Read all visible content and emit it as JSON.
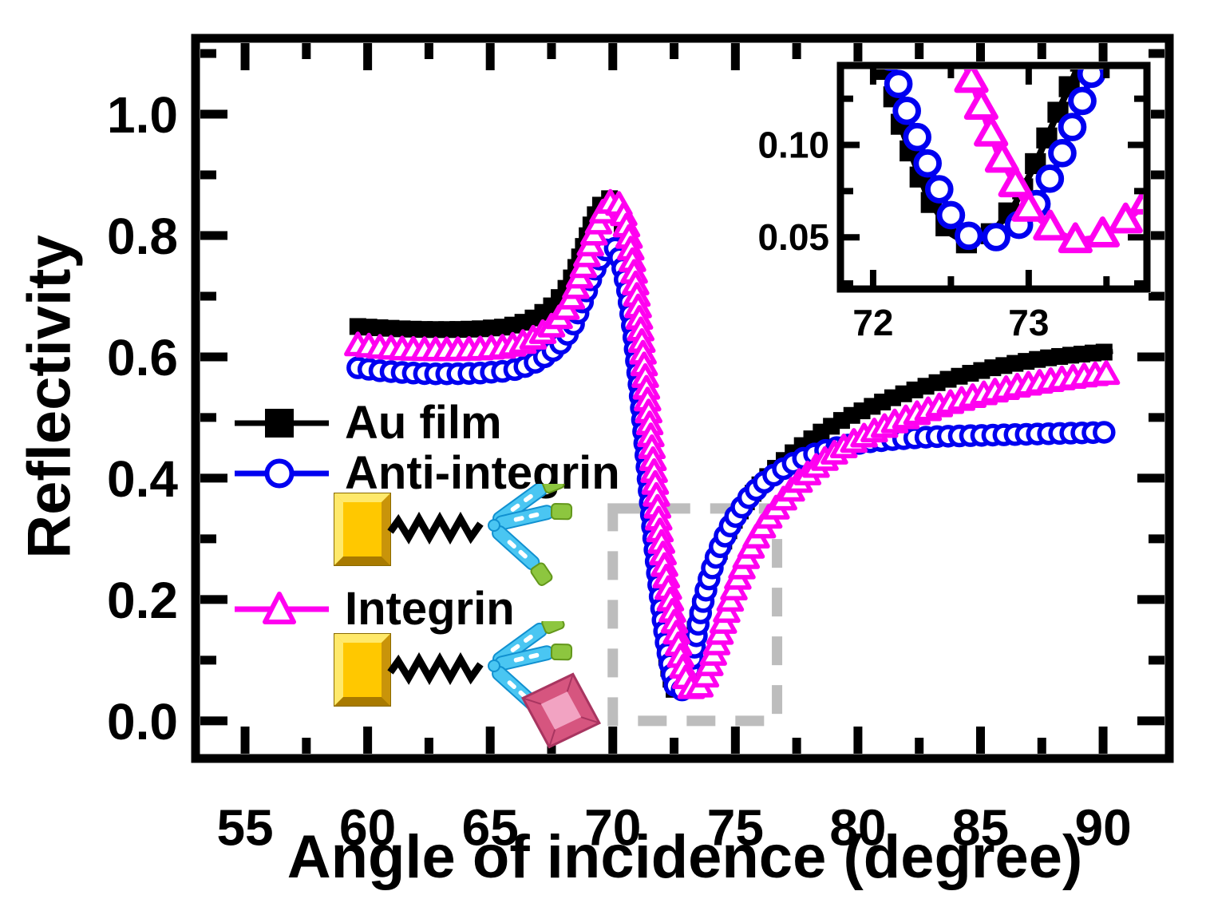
{
  "chart_data": {
    "type": "line",
    "title": "",
    "xlabel": "Angle of incidence (degree)",
    "ylabel": "Reflectivity",
    "xlim": [
      52.98,
      92.7
    ],
    "ylim": [
      -0.062,
      1.125
    ],
    "x_major_ticks": [
      55,
      60,
      65,
      70,
      75,
      80,
      85,
      90
    ],
    "x_tick_labels": [
      "55",
      "60",
      "65",
      "70",
      "75",
      "80",
      "85",
      "90"
    ],
    "x_minor_ticks": [
      57.5,
      62.5,
      67.5,
      72.5,
      77.5,
      82.5,
      87.5,
      92.5
    ],
    "y_major_ticks": [
      0.0,
      0.2,
      0.4,
      0.6,
      0.8,
      1.0
    ],
    "y_tick_labels": [
      "0.0",
      "0.2",
      "0.4",
      "0.6",
      "0.8",
      "1.0"
    ],
    "y_minor_ticks": [
      0.1,
      0.3,
      0.5,
      0.7,
      0.9,
      1.1
    ],
    "grid": false,
    "series": [
      {
        "name": "Au film",
        "color": "#000000",
        "marker": "square",
        "points": [
          [
            59.6,
            0.65
          ],
          [
            60.5,
            0.648
          ],
          [
            61.5,
            0.646
          ],
          [
            62.5,
            0.645
          ],
          [
            63.5,
            0.645
          ],
          [
            64.5,
            0.646
          ],
          [
            65.5,
            0.649
          ],
          [
            66.0,
            0.653
          ],
          [
            66.5,
            0.659
          ],
          [
            67.0,
            0.669
          ],
          [
            67.5,
            0.684
          ],
          [
            68.0,
            0.706
          ],
          [
            68.4,
            0.737
          ],
          [
            68.8,
            0.782
          ],
          [
            69.2,
            0.828
          ],
          [
            69.5,
            0.85
          ],
          [
            69.8,
            0.862
          ],
          [
            70.0,
            0.858
          ],
          [
            70.2,
            0.841
          ],
          [
            70.45,
            0.801
          ],
          [
            70.7,
            0.737
          ],
          [
            70.95,
            0.648
          ],
          [
            71.2,
            0.538
          ],
          [
            71.45,
            0.418
          ],
          [
            71.7,
            0.298
          ],
          [
            71.9,
            0.207
          ],
          [
            72.05,
            0.152
          ],
          [
            72.2,
            0.105
          ],
          [
            72.35,
            0.072
          ],
          [
            72.5,
            0.052
          ],
          [
            72.6,
            0.047
          ],
          [
            72.75,
            0.051
          ],
          [
            72.9,
            0.066
          ],
          [
            73.05,
            0.091
          ],
          [
            73.2,
            0.12
          ],
          [
            73.4,
            0.158
          ],
          [
            73.6,
            0.192
          ],
          [
            73.9,
            0.233
          ],
          [
            74.2,
            0.266
          ],
          [
            74.6,
            0.303
          ],
          [
            75.0,
            0.334
          ],
          [
            75.5,
            0.364
          ],
          [
            76.0,
            0.389
          ],
          [
            76.7,
            0.419
          ],
          [
            77.5,
            0.447
          ],
          [
            78.5,
            0.476
          ],
          [
            79.5,
            0.499
          ],
          [
            80.5,
            0.517
          ],
          [
            81.5,
            0.534
          ],
          [
            82.5,
            0.548
          ],
          [
            83.5,
            0.561
          ],
          [
            84.5,
            0.572
          ],
          [
            85.5,
            0.582
          ],
          [
            86.5,
            0.59
          ],
          [
            87.5,
            0.597
          ],
          [
            88.5,
            0.602
          ],
          [
            89.5,
            0.606
          ],
          [
            90.4,
            0.609
          ]
        ]
      },
      {
        "name": "Anti-integrin",
        "color": "#0000F0",
        "marker": "circle-open",
        "points": [
          [
            59.6,
            0.582
          ],
          [
            60.5,
            0.577
          ],
          [
            61.5,
            0.574
          ],
          [
            62.5,
            0.572
          ],
          [
            63.5,
            0.572
          ],
          [
            64.5,
            0.573
          ],
          [
            65.5,
            0.576
          ],
          [
            66.0,
            0.579
          ],
          [
            66.5,
            0.585
          ],
          [
            67.0,
            0.594
          ],
          [
            67.5,
            0.608
          ],
          [
            68.0,
            0.627
          ],
          [
            68.4,
            0.654
          ],
          [
            68.8,
            0.694
          ],
          [
            69.2,
            0.738
          ],
          [
            69.6,
            0.771
          ],
          [
            69.9,
            0.784
          ],
          [
            70.1,
            0.779
          ],
          [
            70.35,
            0.757
          ],
          [
            70.6,
            0.709
          ],
          [
            70.85,
            0.636
          ],
          [
            71.1,
            0.543
          ],
          [
            71.35,
            0.438
          ],
          [
            71.6,
            0.328
          ],
          [
            71.85,
            0.232
          ],
          [
            72.05,
            0.166
          ],
          [
            72.2,
            0.122
          ],
          [
            72.35,
            0.09
          ],
          [
            72.5,
            0.062
          ],
          [
            72.6,
            0.051
          ],
          [
            72.75,
            0.049
          ],
          [
            72.9,
            0.053
          ],
          [
            73.05,
            0.068
          ],
          [
            73.2,
            0.092
          ],
          [
            73.35,
            0.125
          ],
          [
            73.5,
            0.163
          ],
          [
            73.75,
            0.208
          ],
          [
            74.0,
            0.245
          ],
          [
            74.3,
            0.28
          ],
          [
            74.7,
            0.315
          ],
          [
            75.1,
            0.343
          ],
          [
            75.6,
            0.371
          ],
          [
            76.1,
            0.391
          ],
          [
            76.8,
            0.412
          ],
          [
            77.6,
            0.43
          ],
          [
            78.5,
            0.444
          ],
          [
            79.5,
            0.454
          ],
          [
            80.5,
            0.46
          ],
          [
            81.5,
            0.464
          ],
          [
            82.5,
            0.467
          ],
          [
            83.5,
            0.469
          ],
          [
            84.5,
            0.47
          ],
          [
            85.5,
            0.471
          ],
          [
            86.5,
            0.472
          ],
          [
            87.5,
            0.473
          ],
          [
            88.5,
            0.474
          ],
          [
            89.5,
            0.475
          ],
          [
            90.4,
            0.476
          ]
        ]
      },
      {
        "name": "Integrin",
        "color": "#FF00F0",
        "marker": "triangle-open",
        "points": [
          [
            59.6,
            0.617
          ],
          [
            60.5,
            0.613
          ],
          [
            61.5,
            0.61
          ],
          [
            62.5,
            0.609
          ],
          [
            63.5,
            0.609
          ],
          [
            64.5,
            0.61
          ],
          [
            65.5,
            0.613
          ],
          [
            66.0,
            0.617
          ],
          [
            66.5,
            0.623
          ],
          [
            67.0,
            0.633
          ],
          [
            67.5,
            0.648
          ],
          [
            68.0,
            0.67
          ],
          [
            68.4,
            0.701
          ],
          [
            68.8,
            0.746
          ],
          [
            69.2,
            0.796
          ],
          [
            69.6,
            0.836
          ],
          [
            69.9,
            0.852
          ],
          [
            70.15,
            0.855
          ],
          [
            70.4,
            0.839
          ],
          [
            70.65,
            0.798
          ],
          [
            70.9,
            0.729
          ],
          [
            71.15,
            0.638
          ],
          [
            71.4,
            0.534
          ],
          [
            71.65,
            0.424
          ],
          [
            71.9,
            0.318
          ],
          [
            72.15,
            0.242
          ],
          [
            72.4,
            0.185
          ],
          [
            72.6,
            0.142
          ],
          [
            72.8,
            0.096
          ],
          [
            73.0,
            0.065
          ],
          [
            73.15,
            0.054
          ],
          [
            73.3,
            0.048
          ],
          [
            73.45,
            0.05
          ],
          [
            73.6,
            0.057
          ],
          [
            73.75,
            0.068
          ],
          [
            73.9,
            0.083
          ],
          [
            74.1,
            0.107
          ],
          [
            74.4,
            0.145
          ],
          [
            74.7,
            0.185
          ],
          [
            75.0,
            0.222
          ],
          [
            75.4,
            0.263
          ],
          [
            75.8,
            0.297
          ],
          [
            76.3,
            0.33
          ],
          [
            76.9,
            0.36
          ],
          [
            77.6,
            0.392
          ],
          [
            78.5,
            0.424
          ],
          [
            79.5,
            0.451
          ],
          [
            80.5,
            0.472
          ],
          [
            81.5,
            0.49
          ],
          [
            82.5,
            0.505
          ],
          [
            83.5,
            0.519
          ],
          [
            84.5,
            0.53
          ],
          [
            85.5,
            0.54
          ],
          [
            86.5,
            0.549
          ],
          [
            87.5,
            0.556
          ],
          [
            88.5,
            0.562
          ],
          [
            89.5,
            0.567
          ],
          [
            90.4,
            0.571
          ]
        ]
      }
    ],
    "highlight_box": {
      "x0": 70.0,
      "x1": 76.7,
      "y0": 0.0,
      "y1": 0.35
    },
    "inset": {
      "xlim": [
        71.79,
        73.76
      ],
      "ylim": [
        0.022,
        0.143
      ],
      "x_major_ticks": [
        72,
        73
      ],
      "x_tick_labels": [
        "72",
        "73"
      ],
      "x_minor_ticks": [
        72.5,
        73.5
      ],
      "y_major_ticks": [
        0.05,
        0.1
      ],
      "y_tick_labels": [
        "0.05",
        "0.10"
      ],
      "y_minor_ticks": [
        0.025,
        0.075,
        0.125
      ],
      "legend_position": "none"
    },
    "legend_position": "inside-left"
  },
  "legend": {
    "items": [
      {
        "label": "Au film",
        "marker_icon": "filled-square-marker-icon"
      },
      {
        "label": "Anti-integrin",
        "marker_icon": "open-circle-marker-icon"
      },
      {
        "label": "Integrin",
        "marker_icon": "open-triangle-marker-icon"
      }
    ]
  },
  "schematics": {
    "anti_integrin": [
      "gold-slab-icon",
      "linker-zigzag-icon",
      "antibody-icon"
    ],
    "integrin": [
      "gold-slab-icon",
      "linker-zigzag-icon",
      "antibody-icon",
      "integrin-diamond-icon"
    ]
  },
  "colors": {
    "axis": "#000000",
    "series_black": "#000000",
    "series_blue": "#0000F0",
    "series_magenta": "#FF00F0",
    "dash_gray": "#BDBDBD",
    "gold_face": "#FFC800",
    "gold_light": "#FFE96B",
    "gold_dark": "#C9940A",
    "gold_shadow": "#A87A00",
    "antibody_blue": "#4AC6F2",
    "antibody_blue_edge": "#1090D0",
    "antibody_green": "#8DC63F",
    "antibody_green_edge": "#63971B",
    "diamond_pink": "#D6557F",
    "diamond_pink_light": "#F2A3C2",
    "diamond_pink_edge": "#A83560"
  }
}
